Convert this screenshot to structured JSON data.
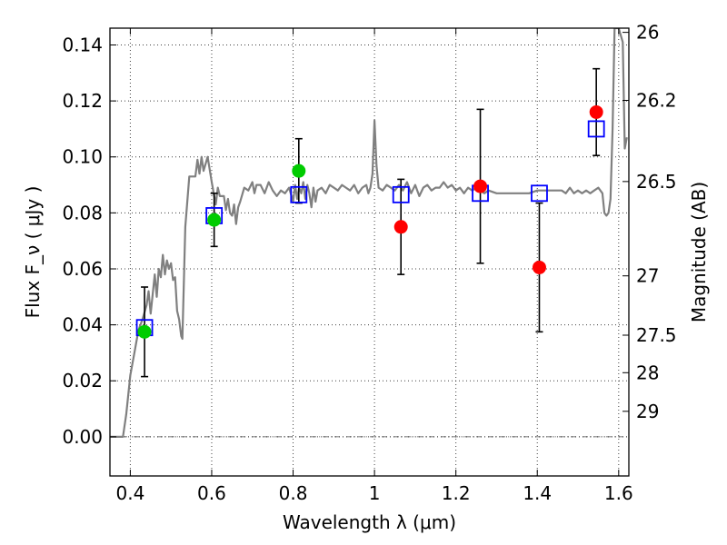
{
  "chart_data": {
    "type": "scatter",
    "title": "",
    "xlabel": "Wavelength  λ (μm)",
    "ylabel": "Flux  F_ν  ( μJy )",
    "ylabel_right": "Magnitude (AB)",
    "xlim": [
      0.35,
      1.625
    ],
    "ylim": [
      -0.014,
      0.146
    ],
    "grid": true,
    "x_ticks": [
      {
        "value": 0.4,
        "label": "0.4"
      },
      {
        "value": 0.6,
        "label": "0.6"
      },
      {
        "value": 0.8,
        "label": "0.8"
      },
      {
        "value": 1.0,
        "label": "1"
      },
      {
        "value": 1.2,
        "label": "1.2"
      },
      {
        "value": 1.4,
        "label": "1.4"
      },
      {
        "value": 1.6,
        "label": "1.6"
      }
    ],
    "y_ticks": [
      {
        "value": 0.0,
        "label": "0.00"
      },
      {
        "value": 0.02,
        "label": "0.02"
      },
      {
        "value": 0.04,
        "label": "0.04"
      },
      {
        "value": 0.06,
        "label": "0.06"
      },
      {
        "value": 0.08,
        "label": "0.08"
      },
      {
        "value": 0.1,
        "label": "0.10"
      },
      {
        "value": 0.12,
        "label": "0.12"
      },
      {
        "value": 0.14,
        "label": "0.14"
      }
    ],
    "right_ticks": [
      {
        "flux": 0.1445,
        "label": "26"
      },
      {
        "flux": 0.1202,
        "label": "26.2"
      },
      {
        "flux": 0.0912,
        "label": "26.5"
      },
      {
        "flux": 0.0575,
        "label": "27"
      },
      {
        "flux": 0.0363,
        "label": "27.5"
      },
      {
        "flux": 0.0229,
        "label": "28"
      },
      {
        "flux": 0.0091,
        "label": "29"
      }
    ],
    "series": [
      {
        "kind": "line",
        "color": "#808080",
        "points": [
          [
            0.35,
            0.0
          ],
          [
            0.382,
            0.0
          ],
          [
            0.39,
            0.008
          ],
          [
            0.4,
            0.022
          ],
          [
            0.41,
            0.03
          ],
          [
            0.42,
            0.038
          ],
          [
            0.43,
            0.042
          ],
          [
            0.44,
            0.047
          ],
          [
            0.445,
            0.052
          ],
          [
            0.45,
            0.044
          ],
          [
            0.46,
            0.058
          ],
          [
            0.465,
            0.05
          ],
          [
            0.47,
            0.06
          ],
          [
            0.475,
            0.057
          ],
          [
            0.48,
            0.065
          ],
          [
            0.485,
            0.058
          ],
          [
            0.49,
            0.063
          ],
          [
            0.495,
            0.06
          ],
          [
            0.5,
            0.062
          ],
          [
            0.505,
            0.056
          ],
          [
            0.51,
            0.057
          ],
          [
            0.515,
            0.045
          ],
          [
            0.52,
            0.042
          ],
          [
            0.525,
            0.036
          ],
          [
            0.528,
            0.035
          ],
          [
            0.535,
            0.075
          ],
          [
            0.545,
            0.093
          ],
          [
            0.56,
            0.093
          ],
          [
            0.565,
            0.099
          ],
          [
            0.57,
            0.094
          ],
          [
            0.575,
            0.1
          ],
          [
            0.58,
            0.095
          ],
          [
            0.59,
            0.1
          ],
          [
            0.6,
            0.091
          ],
          [
            0.605,
            0.087
          ],
          [
            0.61,
            0.083
          ],
          [
            0.615,
            0.089
          ],
          [
            0.62,
            0.086
          ],
          [
            0.63,
            0.086
          ],
          [
            0.635,
            0.081
          ],
          [
            0.64,
            0.085
          ],
          [
            0.645,
            0.08
          ],
          [
            0.65,
            0.079
          ],
          [
            0.655,
            0.083
          ],
          [
            0.66,
            0.076
          ],
          [
            0.665,
            0.082
          ],
          [
            0.67,
            0.084
          ],
          [
            0.68,
            0.089
          ],
          [
            0.69,
            0.088
          ],
          [
            0.7,
            0.091
          ],
          [
            0.705,
            0.087
          ],
          [
            0.71,
            0.09
          ],
          [
            0.72,
            0.09
          ],
          [
            0.73,
            0.087
          ],
          [
            0.74,
            0.091
          ],
          [
            0.75,
            0.088
          ],
          [
            0.76,
            0.086
          ],
          [
            0.77,
            0.088
          ],
          [
            0.78,
            0.087
          ],
          [
            0.79,
            0.089
          ],
          [
            0.8,
            0.084
          ],
          [
            0.805,
            0.09
          ],
          [
            0.81,
            0.085
          ],
          [
            0.815,
            0.089
          ],
          [
            0.82,
            0.087
          ],
          [
            0.825,
            0.091
          ],
          [
            0.83,
            0.085
          ],
          [
            0.835,
            0.09
          ],
          [
            0.84,
            0.087
          ],
          [
            0.845,
            0.082
          ],
          [
            0.85,
            0.089
          ],
          [
            0.855,
            0.084
          ],
          [
            0.86,
            0.088
          ],
          [
            0.87,
            0.089
          ],
          [
            0.88,
            0.087
          ],
          [
            0.89,
            0.09
          ],
          [
            0.9,
            0.089
          ],
          [
            0.91,
            0.088
          ],
          [
            0.92,
            0.09
          ],
          [
            0.93,
            0.089
          ],
          [
            0.94,
            0.088
          ],
          [
            0.95,
            0.09
          ],
          [
            0.96,
            0.087
          ],
          [
            0.97,
            0.089
          ],
          [
            0.98,
            0.09
          ],
          [
            0.985,
            0.087
          ],
          [
            0.99,
            0.089
          ],
          [
            0.995,
            0.094
          ],
          [
            1.0,
            0.113
          ],
          [
            1.005,
            0.097
          ],
          [
            1.01,
            0.089
          ],
          [
            1.02,
            0.088
          ],
          [
            1.03,
            0.09
          ],
          [
            1.04,
            0.089
          ],
          [
            1.05,
            0.088
          ],
          [
            1.06,
            0.09
          ],
          [
            1.07,
            0.088
          ],
          [
            1.08,
            0.091
          ],
          [
            1.09,
            0.087
          ],
          [
            1.1,
            0.09
          ],
          [
            1.11,
            0.086
          ],
          [
            1.12,
            0.089
          ],
          [
            1.13,
            0.09
          ],
          [
            1.14,
            0.088
          ],
          [
            1.15,
            0.089
          ],
          [
            1.16,
            0.089
          ],
          [
            1.17,
            0.091
          ],
          [
            1.18,
            0.089
          ],
          [
            1.19,
            0.09
          ],
          [
            1.2,
            0.088
          ],
          [
            1.21,
            0.089
          ],
          [
            1.22,
            0.087
          ],
          [
            1.23,
            0.089
          ],
          [
            1.24,
            0.088
          ],
          [
            1.25,
            0.089
          ],
          [
            1.26,
            0.088
          ],
          [
            1.27,
            0.087
          ],
          [
            1.28,
            0.088
          ],
          [
            1.3,
            0.087
          ],
          [
            1.32,
            0.087
          ],
          [
            1.34,
            0.087
          ],
          [
            1.36,
            0.087
          ],
          [
            1.38,
            0.087
          ],
          [
            1.4,
            0.088
          ],
          [
            1.42,
            0.088
          ],
          [
            1.44,
            0.088
          ],
          [
            1.46,
            0.088
          ],
          [
            1.47,
            0.087
          ],
          [
            1.48,
            0.089
          ],
          [
            1.49,
            0.087
          ],
          [
            1.5,
            0.088
          ],
          [
            1.51,
            0.087
          ],
          [
            1.52,
            0.088
          ],
          [
            1.53,
            0.087
          ],
          [
            1.54,
            0.088
          ],
          [
            1.55,
            0.089
          ],
          [
            1.56,
            0.087
          ],
          [
            1.565,
            0.08
          ],
          [
            1.57,
            0.079
          ],
          [
            1.575,
            0.08
          ],
          [
            1.58,
            0.085
          ],
          [
            1.585,
            0.11
          ],
          [
            1.59,
            0.146
          ],
          [
            1.6,
            0.146
          ],
          [
            1.61,
            0.141
          ],
          [
            1.615,
            0.103
          ],
          [
            1.62,
            0.107
          ]
        ]
      },
      {
        "kind": "model-photometry",
        "marker": "open-square",
        "color": "#0000ff",
        "points": [
          {
            "x": 0.435,
            "y": 0.039
          },
          {
            "x": 0.606,
            "y": 0.079
          },
          {
            "x": 0.814,
            "y": 0.0865
          },
          {
            "x": 1.065,
            "y": 0.0865
          },
          {
            "x": 1.26,
            "y": 0.087
          },
          {
            "x": 1.405,
            "y": 0.087
          },
          {
            "x": 1.545,
            "y": 0.11
          }
        ]
      },
      {
        "kind": "observed",
        "marker": "filled-circle",
        "color": "#00cc00",
        "points": [
          {
            "x": 0.435,
            "y": 0.0375,
            "ylo": 0.0215,
            "yhi": 0.0535
          },
          {
            "x": 0.606,
            "y": 0.0775,
            "ylo": 0.068,
            "yhi": 0.087
          },
          {
            "x": 0.814,
            "y": 0.095,
            "ylo": 0.0835,
            "yhi": 0.1065
          }
        ]
      },
      {
        "kind": "observed",
        "marker": "filled-circle",
        "color": "#ff0000",
        "points": [
          {
            "x": 1.065,
            "y": 0.075,
            "ylo": 0.058,
            "yhi": 0.092
          },
          {
            "x": 1.26,
            "y": 0.0895,
            "ylo": 0.062,
            "yhi": 0.117
          },
          {
            "x": 1.405,
            "y": 0.0605,
            "ylo": 0.0375,
            "yhi": 0.0835
          },
          {
            "x": 1.545,
            "y": 0.116,
            "ylo": 0.1005,
            "yhi": 0.1315
          }
        ]
      }
    ]
  }
}
